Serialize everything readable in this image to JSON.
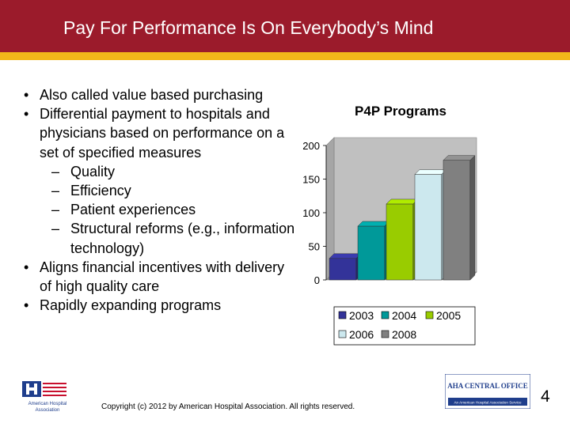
{
  "slide": {
    "title": "Pay For Performance Is On Everybody’s Mind",
    "page_number": "4",
    "footer": "Copyright (c) 2012 by  American Hospital Association. All rights reserved.",
    "colors": {
      "title_bar": "#9b1b2b",
      "stripe": "#f2b71a"
    }
  },
  "bullets": [
    {
      "text": "Also called value based purchasing"
    },
    {
      "text": "Differential payment to hospitals and physicians based on performance on a set of specified measures",
      "subitems": [
        "Quality",
        "Efficiency",
        "Patient experiences",
        "Structural reforms (e.g., information technology)"
      ]
    },
    {
      "text": "Aligns financial incentives with delivery of high quality care"
    },
    {
      "text": "Rapidly expanding programs"
    }
  ],
  "logos": {
    "left_text": "American Hospital Association",
    "right_title": "AHA CENTRAL OFFICE",
    "right_tagline": "An American Hospital Association Service"
  },
  "chart_data": {
    "type": "bar",
    "title": "P4P Programs",
    "categories": [
      "2003",
      "2004",
      "2005",
      "2006",
      "2008"
    ],
    "values": [
      32,
      80,
      113,
      157,
      178
    ],
    "colors": [
      "#333399",
      "#009999",
      "#99cc00",
      "#cce8ee",
      "#808080"
    ],
    "ylim": [
      0,
      200
    ],
    "yticks": [
      0,
      50,
      100,
      150,
      200
    ],
    "legend": [
      "2003",
      "2004",
      "2005",
      "2006",
      "2008"
    ],
    "legend_position": "bottom",
    "grid": false,
    "style": "3d"
  }
}
